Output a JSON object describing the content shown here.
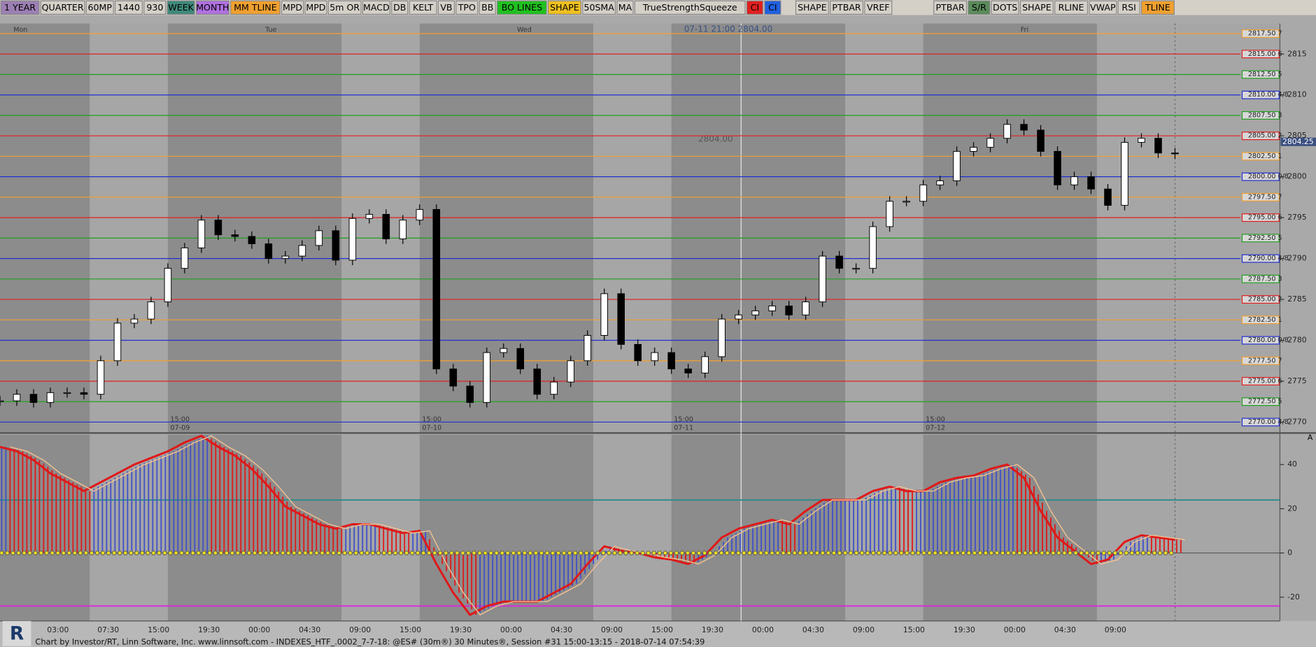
{
  "toolbar": [
    {
      "label": "1 YEAR",
      "color": "#9c7fb3"
    },
    {
      "label": "QUARTER",
      "color": "#d4d0c8"
    },
    {
      "label": "60MP",
      "color": "#d4d0c8"
    },
    {
      "label": "1440",
      "color": "#d4d0c8"
    },
    {
      "label": "930",
      "color": "#d4d0c8"
    },
    {
      "label": "WEEK",
      "color": "#3f8a7a"
    },
    {
      "label": "MONTH",
      "color": "#b070e0"
    },
    {
      "label": "MM TLINE",
      "color": "#f0a030"
    },
    {
      "label": "MPD",
      "color": "#d4d0c8"
    },
    {
      "label": "MPD",
      "color": "#d4d0c8"
    },
    {
      "label": "5m OR",
      "color": "#d4d0c8"
    },
    {
      "label": "MACD",
      "color": "#d4d0c8"
    },
    {
      "label": "DB",
      "color": "#d4d0c8"
    },
    {
      "label": "KELT",
      "color": "#d4d0c8"
    },
    {
      "label": "VB",
      "color": "#d4d0c8"
    },
    {
      "label": "TPO",
      "color": "#d4d0c8"
    },
    {
      "label": "BB",
      "color": "#d4d0c8"
    },
    {
      "label": "BO LINES",
      "color": "#20c020"
    },
    {
      "label": "SHAPE",
      "color": "#f0c020"
    },
    {
      "label": "50SMA",
      "color": "#d4d0c8"
    },
    {
      "label": "MA",
      "color": "#d4d0c8"
    },
    {
      "label": "TrueStrengthSqueeze",
      "color": "#d4d0c8"
    },
    {
      "label": "CI",
      "color": "#e02020"
    },
    {
      "label": "CI",
      "color": "#2060e0"
    },
    {
      "label": "SHAPE",
      "color": "#d4d0c8"
    },
    {
      "label": "PTBAR",
      "color": "#d4d0c8"
    },
    {
      "label": "VREF",
      "color": "#d4d0c8"
    },
    {
      "label": "PTBAR",
      "color": "#d4d0c8"
    },
    {
      "label": "S/R",
      "color": "#5a8a5a"
    },
    {
      "label": "DOTS",
      "color": "#d4d0c8"
    },
    {
      "label": "SHAPE",
      "color": "#d4d0c8"
    },
    {
      "label": "RLINE",
      "color": "#d4d0c8"
    },
    {
      "label": "VWAP",
      "color": "#d4d0c8"
    },
    {
      "label": "RSI",
      "color": "#d4d0c8"
    },
    {
      "label": "TLINE",
      "color": "#f0a030"
    }
  ],
  "days": [
    "Mon",
    "Tue",
    "Wed",
    "Fri"
  ],
  "crosshair_label": "07-11 21:00 2804.00",
  "level_note": "2804.00",
  "last_price": "2804.25",
  "session_labels": [
    {
      "time": "15:00",
      "date": "07-09"
    },
    {
      "time": "15:00",
      "date": "07-10"
    },
    {
      "time": "15:00",
      "date": "07-11"
    },
    {
      "time": "15:00",
      "date": "07-12"
    }
  ],
  "levels": [
    {
      "value": 2817.5,
      "label": "2817.50 7",
      "color": "#f0a030"
    },
    {
      "value": 2815,
      "label": "2815.00 6",
      "color": "#e02020"
    },
    {
      "value": 2812.5,
      "label": "2812.50 5",
      "color": "#20a020"
    },
    {
      "value": 2810,
      "label": "2810.00 4/8",
      "color": "#2030d0"
    },
    {
      "value": 2807.5,
      "label": "2807.50 3",
      "color": "#20a020"
    },
    {
      "value": 2805,
      "label": "2805.00 2",
      "color": "#e02020"
    },
    {
      "value": 2802.5,
      "label": "2802.50 1",
      "color": "#f0a030"
    },
    {
      "value": 2800,
      "label": "2800.00 0/8",
      "color": "#2030d0"
    },
    {
      "value": 2797.5,
      "label": "2797.50 7",
      "color": "#f0a030"
    },
    {
      "value": 2795,
      "label": "2795.00 6",
      "color": "#e02020"
    },
    {
      "value": 2792.5,
      "label": "2792.50 5",
      "color": "#20a020"
    },
    {
      "value": 2790,
      "label": "2790.00 4/8",
      "color": "#2030d0"
    },
    {
      "value": 2787.5,
      "label": "2787.50 3",
      "color": "#20a020"
    },
    {
      "value": 2785,
      "label": "2785.00 2",
      "color": "#e02020"
    },
    {
      "value": 2782.5,
      "label": "2782.50 1",
      "color": "#f0a030"
    },
    {
      "value": 2780,
      "label": "2780.00 0/8",
      "color": "#2030d0"
    },
    {
      "value": 2777.5,
      "label": "2777.50 7",
      "color": "#f0a030"
    },
    {
      "value": 2775,
      "label": "2775.00 6",
      "color": "#e02020"
    },
    {
      "value": 2772.5,
      "label": "2772.50 5",
      "color": "#20a020"
    },
    {
      "value": 2770,
      "label": "2770.00 4/8",
      "color": "#2030d0"
    }
  ],
  "price_axis": {
    "ylim": [
      2770,
      2817.5
    ],
    "yticks": [
      2770,
      2775,
      2780,
      2785,
      2790,
      2795,
      2800,
      2805,
      2810,
      2815
    ]
  },
  "price": {
    "closes": [
      2772.6,
      2773.4,
      2772.4,
      2773.6,
      2773.6,
      2773.4,
      2777.5,
      2782.1,
      2782.6,
      2784.7,
      2788.8,
      2791.3,
      2794.7,
      2792.9,
      2792.7,
      2791.8,
      2790.0,
      2790.3,
      2791.6,
      2793.4,
      2789.8,
      2794.9,
      2795.4,
      2792.4,
      2794.7,
      2796.0,
      2776.5,
      2774.4,
      2772.4,
      2778.5,
      2779.0,
      2776.5,
      2773.4,
      2774.9,
      2777.5,
      2780.6,
      2785.7,
      2779.5,
      2777.5,
      2778.5,
      2776.5,
      2776.0,
      2778.0,
      2782.6,
      2783.1,
      2783.6,
      2784.2,
      2783.1,
      2784.7,
      2790.3,
      2788.8,
      2788.8,
      2793.9,
      2797.0,
      2797.0,
      2799.0,
      2799.5,
      2803.1,
      2803.6,
      2804.7,
      2806.4,
      2805.7,
      2803.1,
      2799.0,
      2800.0,
      2798.5,
      2796.5,
      2804.2,
      2804.7,
      2802.9,
      2802.8
    ],
    "up_color": "#ffffff",
    "down_color": "#000000"
  },
  "indicator": {
    "ylim": [
      -30,
      52
    ],
    "yticks": [
      -20,
      0,
      20,
      40
    ],
    "upper_line": {
      "value": 24,
      "color": "#1f8a8a"
    },
    "lower_line": {
      "value": -24,
      "color": "#e020e0"
    },
    "values": [
      48,
      46,
      42,
      36,
      32,
      28,
      32,
      36,
      40,
      43,
      46,
      50,
      53,
      48,
      44,
      38,
      30,
      21,
      17,
      13,
      11,
      13,
      13,
      11,
      9,
      10,
      -5,
      -18,
      -28,
      -24,
      -22,
      -22,
      -22,
      -18,
      -14,
      -5,
      3,
      1,
      0,
      -2,
      -3,
      -5,
      -1,
      7,
      11,
      13,
      15,
      13,
      19,
      24,
      24,
      24,
      28,
      30,
      28,
      28,
      32,
      34,
      35,
      38,
      40,
      34,
      19,
      7,
      1,
      -5,
      -3,
      5,
      8,
      7,
      6
    ],
    "up_color": "#4050c8",
    "down_color": "#e01818"
  },
  "time_axis": [
    "03:00",
    "07:30",
    "15:00",
    "19:30",
    "00:00",
    "04:30",
    "09:00",
    "15:00",
    "19:30",
    "00:00",
    "04:30",
    "09:00",
    "15:00",
    "19:30",
    "00:00",
    "04:30",
    "09:00",
    "15:00",
    "19:30",
    "00:00",
    "04:30",
    "09:00"
  ],
  "footer": "Chart by Investor/RT, Linn Software, Inc. www.linnsoft.com - INDEXES_HTF_.0002_7-7-18: @ES# (30m®) 30 Minutes®, Session #31 15:00-13:15 - 2018-07-14 07:54:39",
  "panel_tag": "A"
}
